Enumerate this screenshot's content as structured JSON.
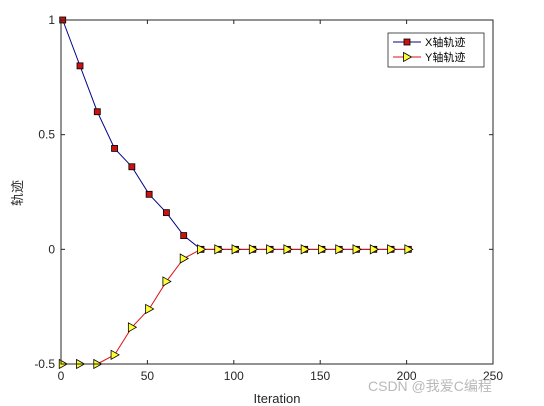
{
  "chart_data": {
    "type": "line",
    "xlabel": "Iteration",
    "ylabel": "轨迹",
    "xlim": [
      0,
      250
    ],
    "ylim": [
      -0.5,
      1
    ],
    "xticks": [
      0,
      50,
      100,
      150,
      200,
      250
    ],
    "yticks": [
      -0.5,
      0,
      0.5,
      1
    ],
    "ytick_labels": [
      "-0.5",
      "0",
      "0.5",
      "1"
    ],
    "grid": false,
    "legend_position": "top-right",
    "x": [
      1,
      11,
      21,
      31,
      41,
      51,
      61,
      71,
      81,
      91,
      101,
      111,
      121,
      131,
      141,
      151,
      161,
      171,
      181,
      191,
      201
    ],
    "series": [
      {
        "name": "X轴轨迹",
        "line_color": "#00008b",
        "marker": "square",
        "marker_fill": "#cc1111",
        "values": [
          1,
          0.8,
          0.6,
          0.44,
          0.36,
          0.24,
          0.16,
          0.06,
          0,
          0,
          0,
          0,
          0,
          0,
          0,
          0,
          0,
          0,
          0,
          0,
          0
        ]
      },
      {
        "name": "Y轴轨迹",
        "line_color": "#e01010",
        "marker": "triangle-right",
        "marker_fill": "#ffff33",
        "values": [
          -0.5,
          -0.5,
          -0.5,
          -0.46,
          -0.34,
          -0.26,
          -0.14,
          -0.04,
          0,
          0,
          0,
          0,
          0,
          0,
          0,
          0,
          0,
          0,
          0,
          0,
          0
        ]
      }
    ]
  },
  "watermark": "CSDN @我爱C编程"
}
